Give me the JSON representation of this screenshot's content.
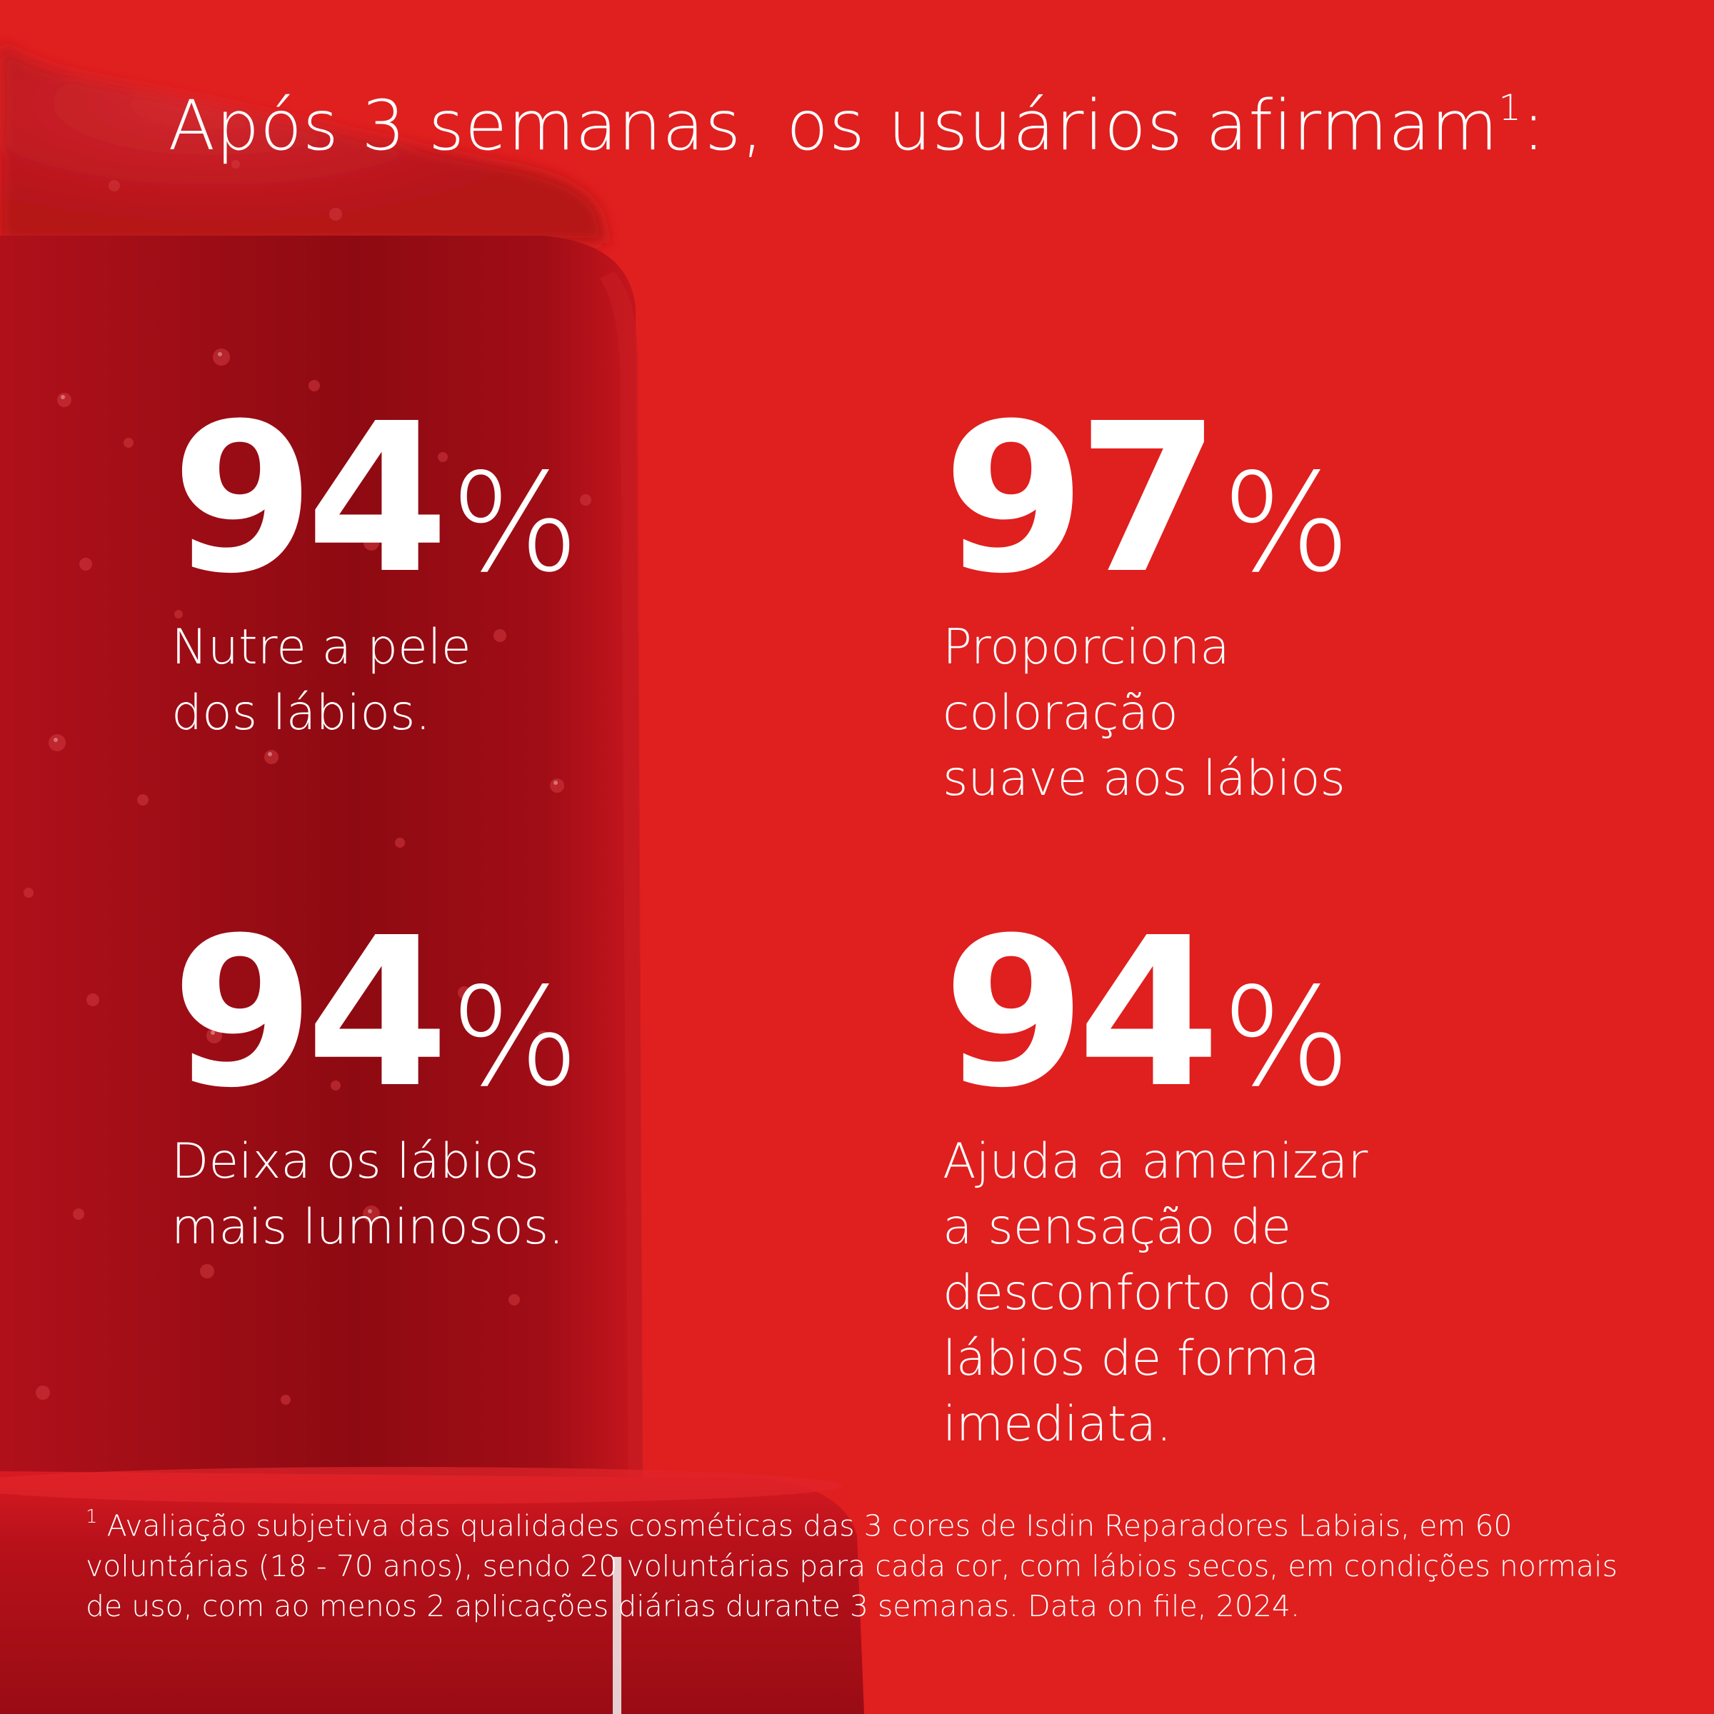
{
  "headline": {
    "text": "Após 3 semanas, os usuários afirmam",
    "superscript": "1",
    "suffix": ":"
  },
  "stats": [
    {
      "value": "94",
      "unit": "%",
      "description": "Nutre a pele\ndos lábios."
    },
    {
      "value": "97",
      "unit": "%",
      "description": "Proporciona\ncoloração\nsuave aos lábios"
    },
    {
      "value": "94",
      "unit": "%",
      "description": "Deixa os lábios\nmais luminosos."
    },
    {
      "value": "94",
      "unit": "%",
      "description": "Ajuda a amenizar\na sensação de\ndesconforto dos\nlábios de forma\nimediata."
    }
  ],
  "footnote": {
    "marker": "1",
    "text": " Avaliação subjetiva das qualidades cosméticas das 3 cores de Isdin Reparadores Labiais, em 60 voluntárias (18 - 70 anos), sendo 20 voluntárias para cada cor, com lábios secos, em condições normais de uso, com ao menos 2 aplicações diárias durante 3 semanas. Data on file, 2024."
  },
  "colors": {
    "background": "#e01f1f",
    "product_dark": "#9c0d14",
    "product_mid": "#c4141c",
    "text": "#ffffff"
  }
}
